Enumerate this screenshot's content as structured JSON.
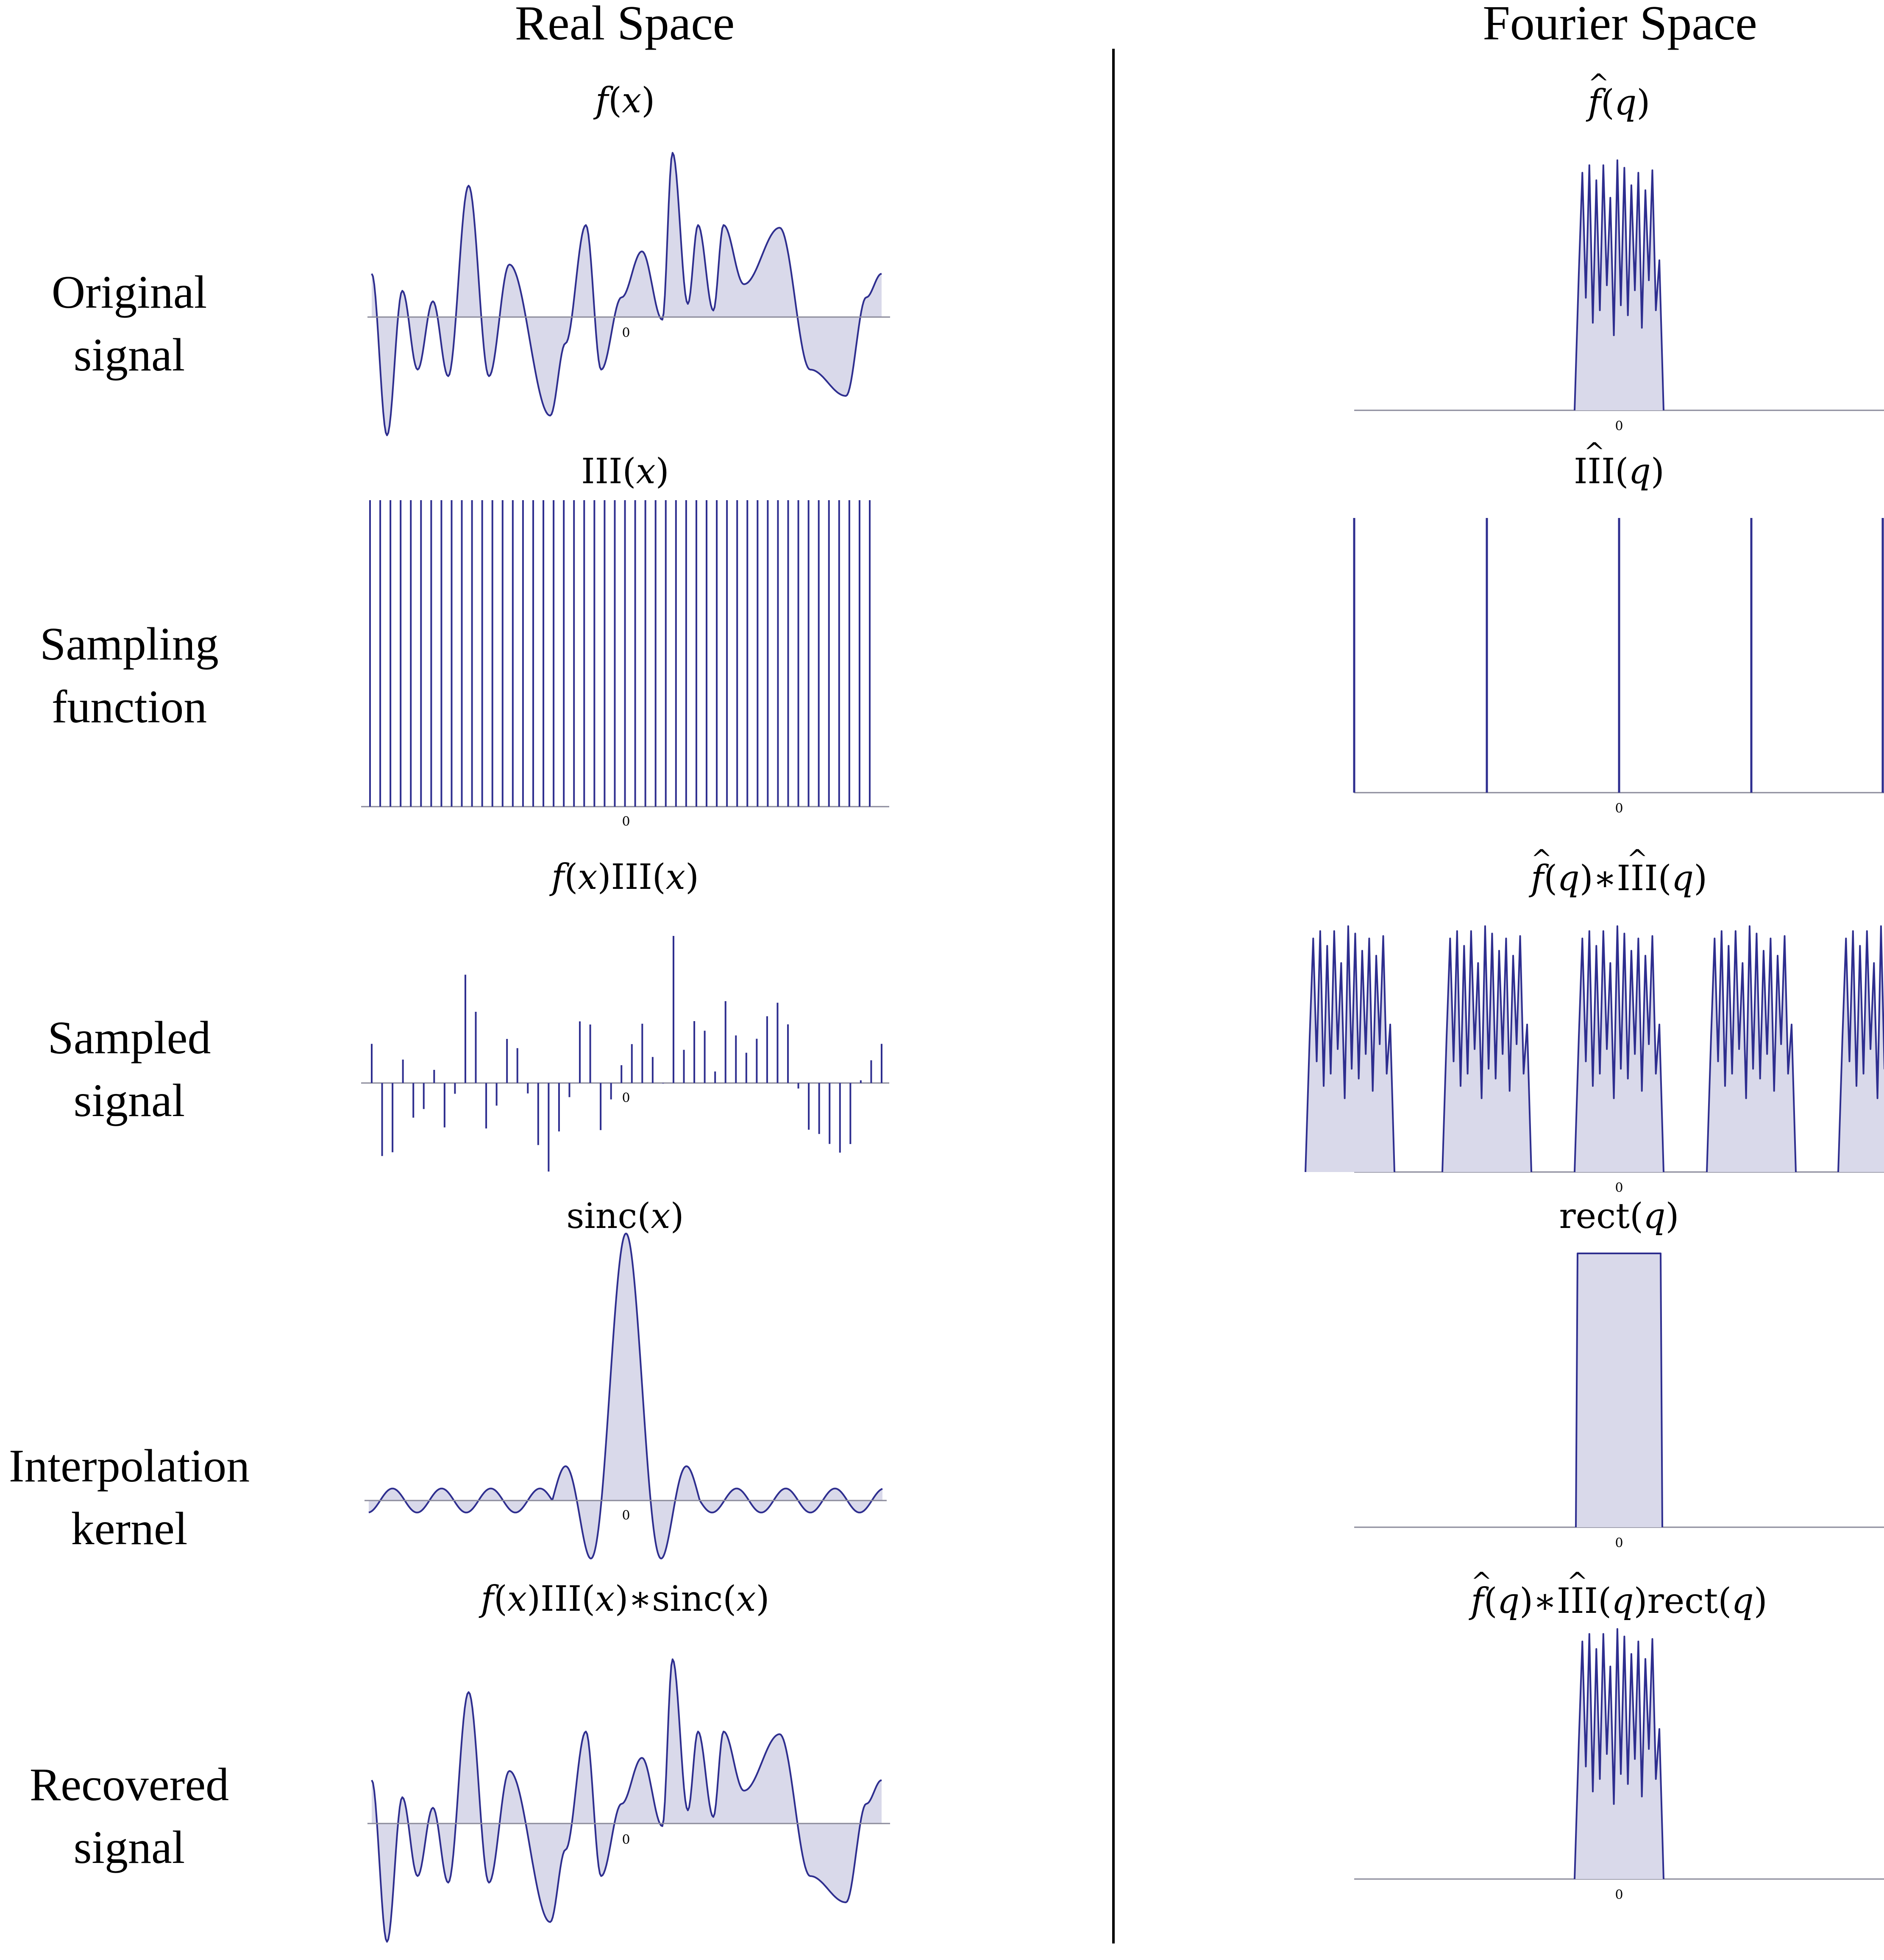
{
  "headings": {
    "real": "Real Space",
    "fourier": "Fourier Space"
  },
  "rows": [
    {
      "label_lines": [
        "Original",
        "signal"
      ]
    },
    {
      "label_lines": [
        "Sampling",
        "function"
      ]
    },
    {
      "label_lines": [
        "Sampled",
        "signal"
      ]
    },
    {
      "label_lines": [
        "Interpolation",
        "kernel"
      ]
    },
    {
      "label_lines": [
        "Recovered",
        "signal"
      ]
    }
  ],
  "math_labels": {
    "f_of_x": "f",
    "x_var": "x",
    "q_var": "q",
    "shah": "III",
    "sinc": "sinc",
    "rect": "rect",
    "conv": "∗"
  },
  "zero_tick": "0",
  "colors": {
    "stroke": "#2e2e8f",
    "fill": "#d9d9ea",
    "axis": "#8a8a9a",
    "divider": "#000000"
  }
}
